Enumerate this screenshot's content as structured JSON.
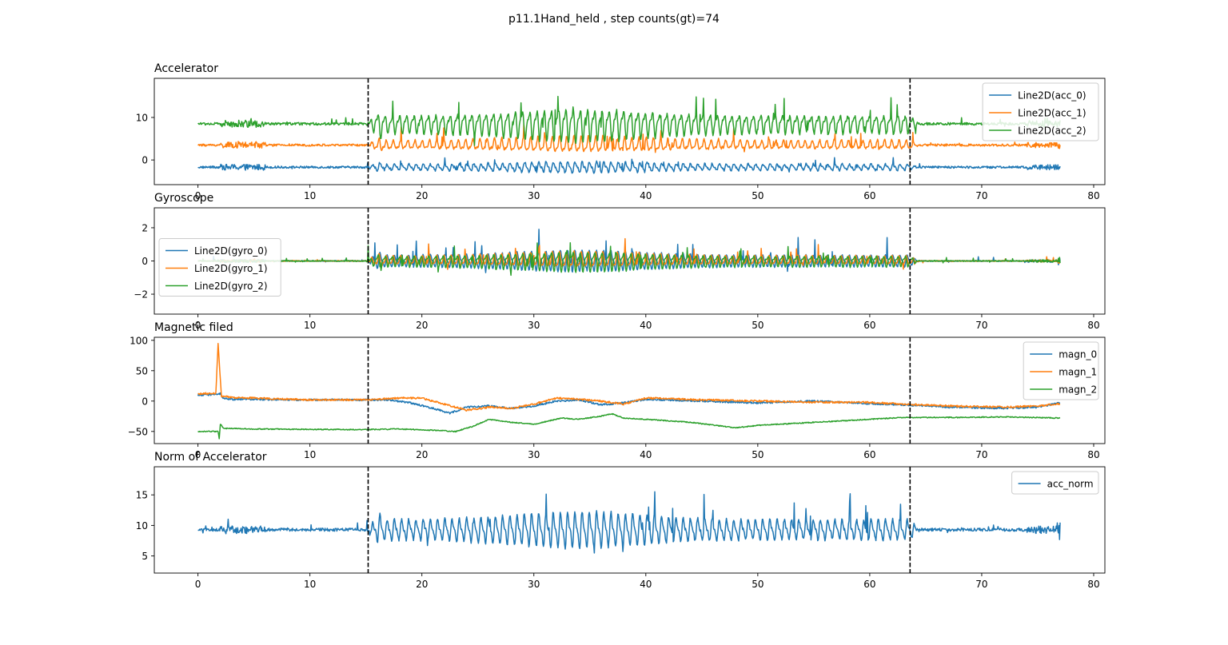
{
  "figure": {
    "suptitle": "p11.1Hand_held ,  step counts(gt)=74"
  },
  "chart_data": [
    {
      "type": "line",
      "id": "acc",
      "title": "Accelerator",
      "xlim": [
        -3.9,
        81
      ],
      "ylim": [
        -5.8,
        19.2
      ],
      "xticks": [
        0,
        10,
        20,
        30,
        40,
        50,
        60,
        70,
        80
      ],
      "yticks": [
        0,
        10
      ],
      "legend": "top-right",
      "vlines": [
        15.2,
        63.6
      ],
      "series": [
        {
          "name": "Line2D(acc_0)",
          "color": "#1f77b4",
          "base": -1.7,
          "walk_amp": 1.5,
          "idle_noise": 0.25,
          "spike": 0.5
        },
        {
          "name": "Line2D(acc_1)",
          "color": "#ff7f0e",
          "base": 3.5,
          "walk_amp": 2.2,
          "idle_noise": 0.25,
          "spike": 1.0
        },
        {
          "name": "Line2D(acc_2)",
          "color": "#2ca02c",
          "base": 8.5,
          "walk_amp": 4.5,
          "idle_noise": 0.3,
          "spike": 2.0
        }
      ]
    },
    {
      "type": "line",
      "id": "gyro",
      "title": "Gyroscope",
      "xlim": [
        -3.9,
        81
      ],
      "ylim": [
        -3.2,
        3.2
      ],
      "xticks": [
        0,
        10,
        20,
        30,
        40,
        50,
        60,
        70,
        80
      ],
      "yticks": [
        -2,
        0,
        2
      ],
      "legend": "center-left",
      "vlines": [
        15.2,
        63.6
      ],
      "series": [
        {
          "name": "Line2D(gyro_0)",
          "color": "#1f77b4",
          "base": 0,
          "walk_amp": 0.75,
          "idle_noise": 0.03,
          "spike": 0.4
        },
        {
          "name": "Line2D(gyro_1)",
          "color": "#ff7f0e",
          "base": 0,
          "walk_amp": 0.6,
          "idle_noise": 0.03,
          "spike": 0.3
        },
        {
          "name": "Line2D(gyro_2)",
          "color": "#2ca02c",
          "base": 0,
          "walk_amp": 0.7,
          "idle_noise": 0.03,
          "spike": 0.3
        }
      ]
    },
    {
      "type": "line",
      "id": "magn",
      "title": "Magnetic filed",
      "xlim": [
        -3.9,
        81
      ],
      "ylim": [
        -70,
        105
      ],
      "xticks": [
        0,
        10,
        20,
        30,
        40,
        50,
        60,
        70,
        80
      ],
      "yticks": [
        -50,
        0,
        50,
        100
      ],
      "legend": "top-right",
      "vlines": [
        15.2,
        63.6
      ],
      "series": [
        {
          "name": "magn_0",
          "color": "#1f77b4",
          "knots": [
            [
              0,
              10
            ],
            [
              1.8,
              11
            ],
            [
              2,
              12
            ],
            [
              2.3,
              4
            ],
            [
              3,
              3
            ],
            [
              10,
              2
            ],
            [
              15,
              2
            ],
            [
              17,
              2
            ],
            [
              19,
              -3
            ],
            [
              21,
              -12
            ],
            [
              22.5,
              -20
            ],
            [
              24,
              -10
            ],
            [
              26,
              -8
            ],
            [
              28,
              -12
            ],
            [
              30,
              -8
            ],
            [
              32,
              0
            ],
            [
              34,
              2
            ],
            [
              36,
              -6
            ],
            [
              38,
              -3
            ],
            [
              40,
              3
            ],
            [
              45,
              0
            ],
            [
              50,
              -3
            ],
            [
              55,
              0
            ],
            [
              60,
              -4
            ],
            [
              63,
              -6
            ],
            [
              67,
              -10
            ],
            [
              72,
              -12
            ],
            [
              75,
              -10
            ],
            [
              77,
              -3
            ]
          ],
          "noise": 1.5
        },
        {
          "name": "magn_1",
          "color": "#ff7f0e",
          "knots": [
            [
              0,
              12
            ],
            [
              1.6,
              13
            ],
            [
              1.8,
              95
            ],
            [
              1.95,
              50
            ],
            [
              2.1,
              8
            ],
            [
              3,
              6
            ],
            [
              10,
              2
            ],
            [
              15,
              2
            ],
            [
              18,
              5
            ],
            [
              20,
              5
            ],
            [
              22,
              -5
            ],
            [
              24,
              -15
            ],
            [
              26,
              -10
            ],
            [
              28,
              -12
            ],
            [
              30,
              -5
            ],
            [
              32,
              5
            ],
            [
              34,
              3
            ],
            [
              36,
              0
            ],
            [
              38,
              -5
            ],
            [
              40,
              5
            ],
            [
              45,
              2
            ],
            [
              50,
              0
            ],
            [
              55,
              -2
            ],
            [
              60,
              -2
            ],
            [
              63,
              -5
            ],
            [
              67,
              -8
            ],
            [
              72,
              -10
            ],
            [
              75,
              -8
            ],
            [
              77,
              -4
            ]
          ],
          "noise": 1.5
        },
        {
          "name": "magn_2",
          "color": "#2ca02c",
          "knots": [
            [
              0,
              -50
            ],
            [
              1.8,
              -50
            ],
            [
              1.9,
              -62
            ],
            [
              2.0,
              -38
            ],
            [
              2.3,
              -45
            ],
            [
              5,
              -46
            ],
            [
              15,
              -47
            ],
            [
              18,
              -46
            ],
            [
              21,
              -48
            ],
            [
              23,
              -50
            ],
            [
              24.5,
              -42
            ],
            [
              26,
              -30
            ],
            [
              28,
              -35
            ],
            [
              30,
              -38
            ],
            [
              31,
              -34
            ],
            [
              32.5,
              -28
            ],
            [
              34,
              -30
            ],
            [
              36,
              -25
            ],
            [
              37,
              -21
            ],
            [
              38,
              -28
            ],
            [
              40,
              -30
            ],
            [
              44,
              -35
            ],
            [
              48,
              -44
            ],
            [
              50,
              -40
            ],
            [
              55,
              -35
            ],
            [
              60,
              -30
            ],
            [
              63,
              -27
            ],
            [
              68,
              -27
            ],
            [
              72,
              -26
            ],
            [
              77,
              -28
            ]
          ],
          "noise": 0.8
        }
      ]
    },
    {
      "type": "line",
      "id": "norm",
      "title": "Norm of Accelerator",
      "xlim": [
        -3.9,
        81
      ],
      "ylim": [
        2.2,
        19.6
      ],
      "xticks": [
        0,
        10,
        20,
        30,
        40,
        50,
        60,
        70,
        80
      ],
      "yticks": [
        5,
        10,
        15
      ],
      "legend": "top-right",
      "vlines": [
        15.2,
        63.6
      ],
      "series": [
        {
          "name": "acc_norm",
          "color": "#1f77b4",
          "base": 9.3,
          "walk_amp": 3.5,
          "idle_noise": 0.25,
          "spike": 1.5
        }
      ]
    }
  ]
}
